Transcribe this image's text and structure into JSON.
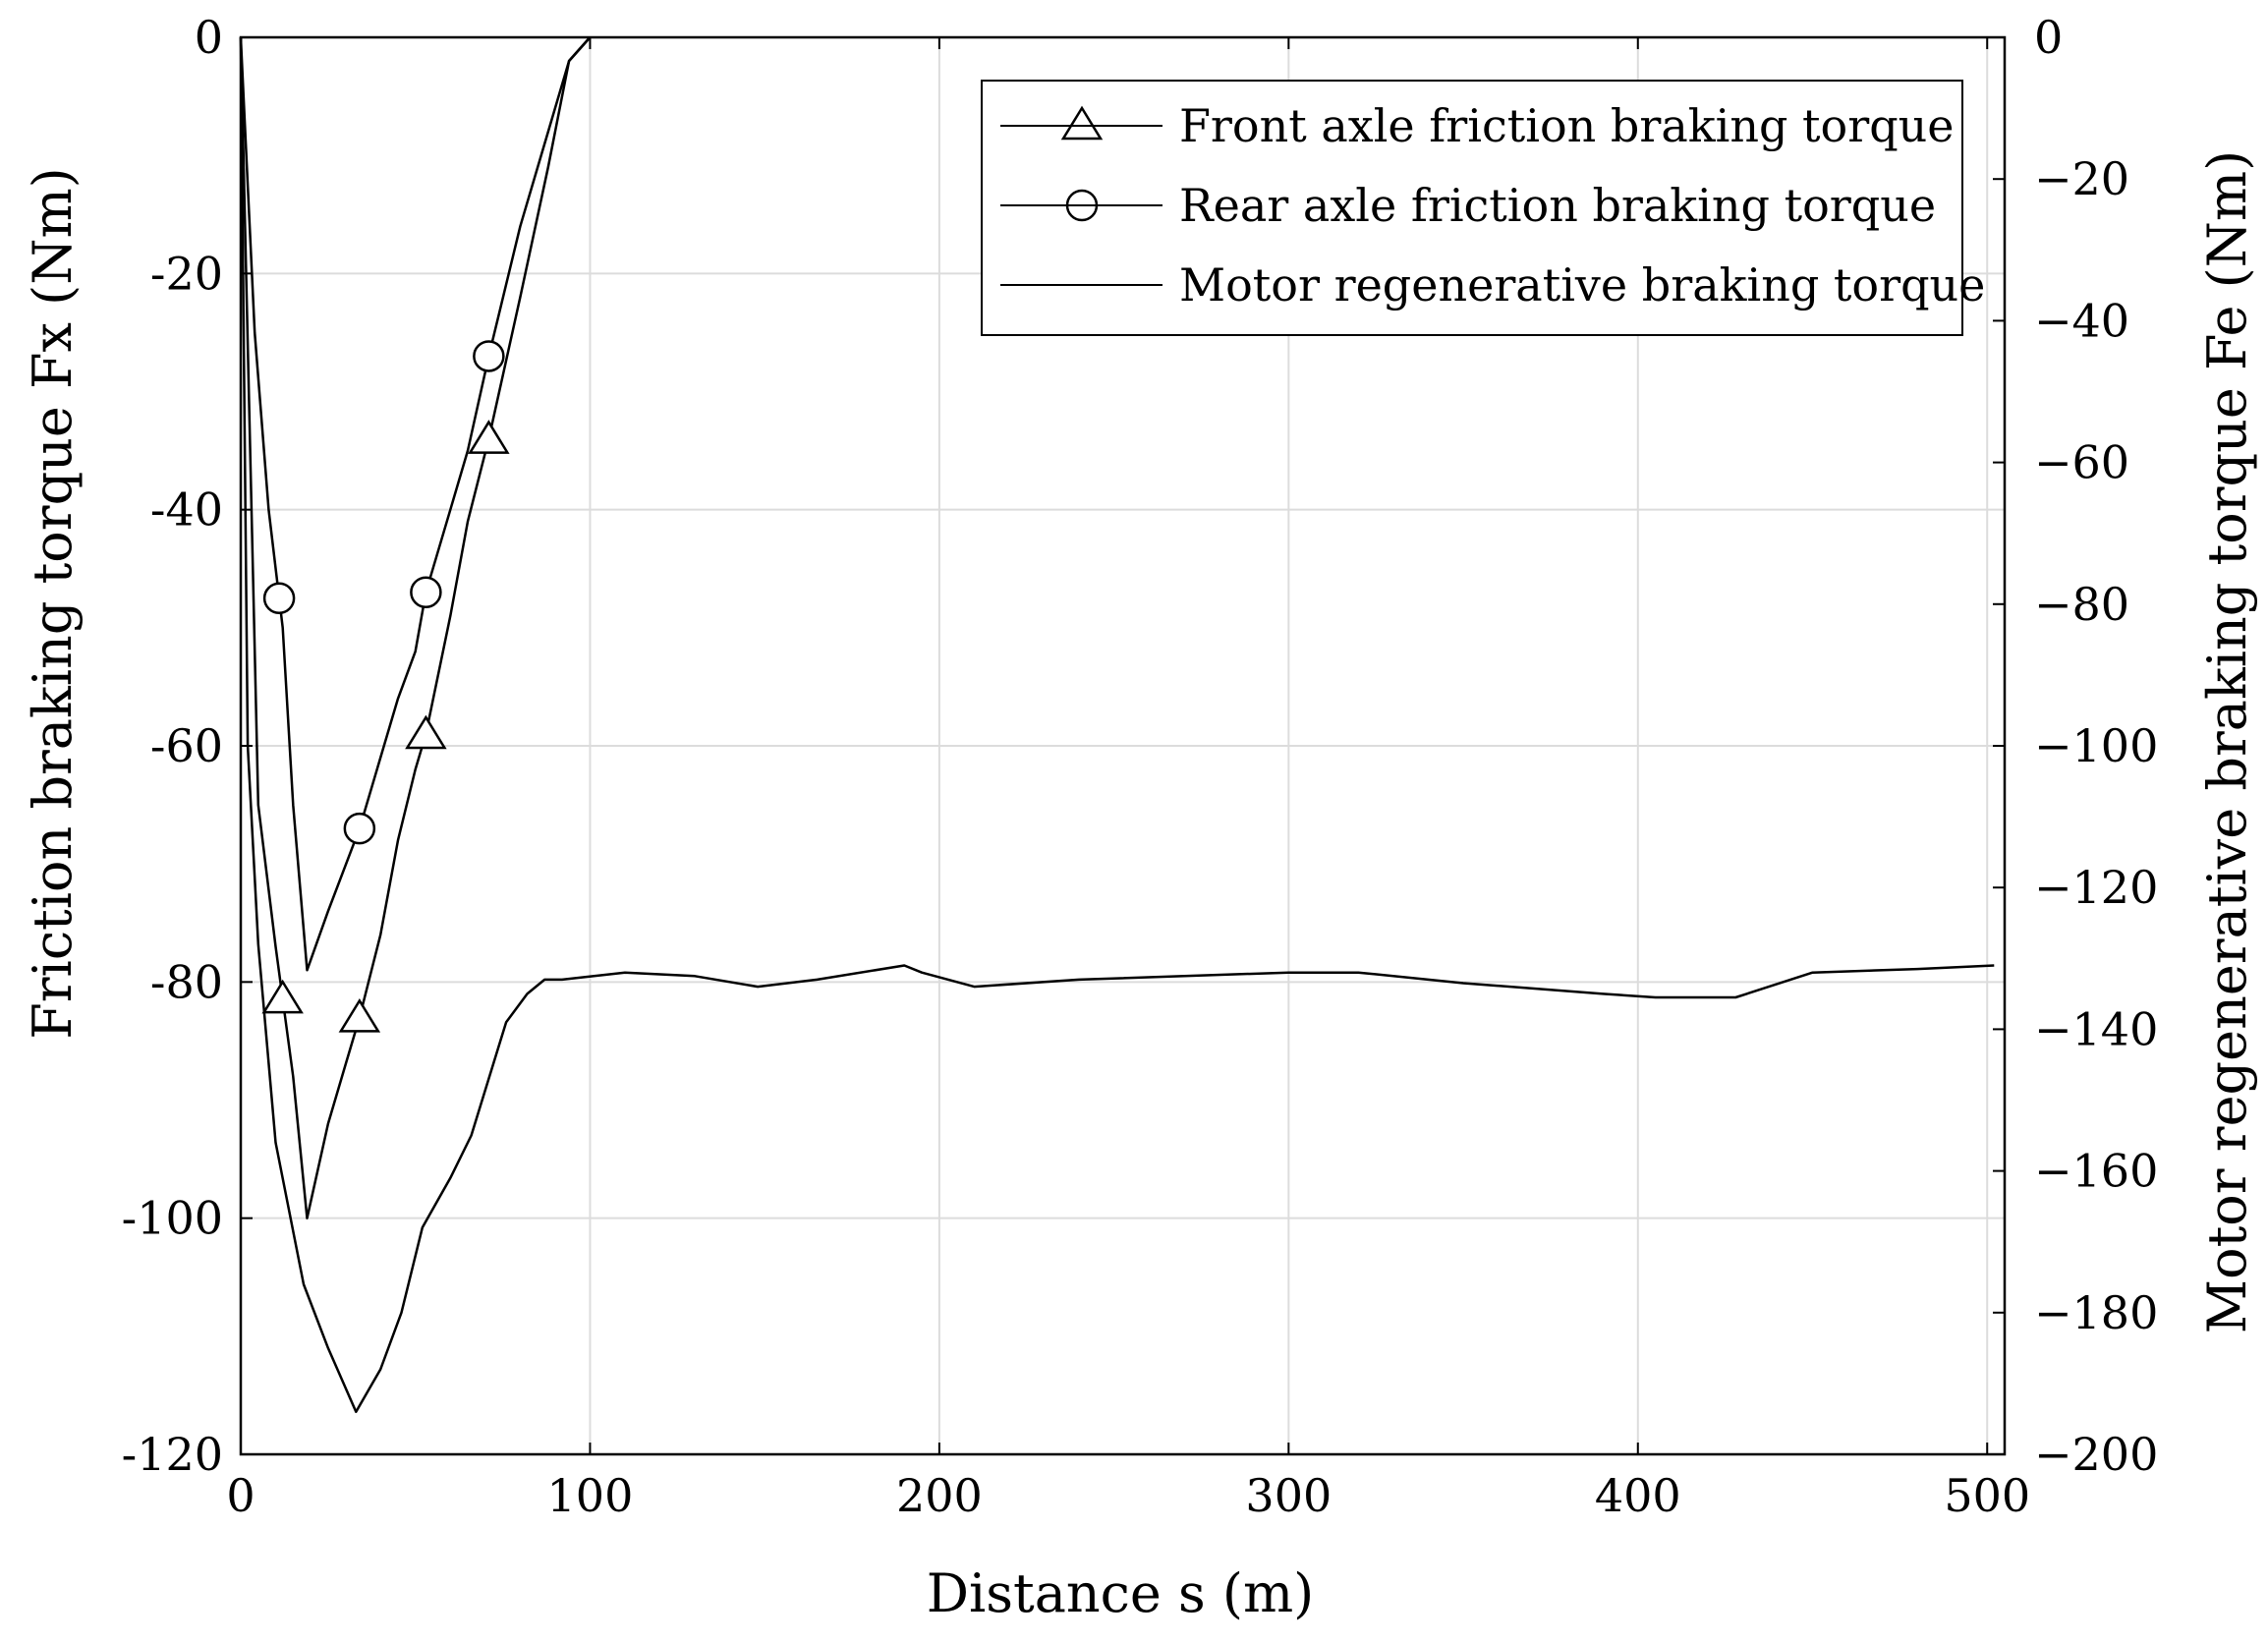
{
  "chart_data": {
    "type": "line",
    "xlabel": "Distance s (m)",
    "ylabel_left": "Friction braking torque Fx (Nm)",
    "ylabel_right": "Motor regenerative braking torque Fe (Nm)",
    "xlim": [
      0,
      505
    ],
    "ylim_left": [
      -120,
      0
    ],
    "ylim_right": [
      -200,
      0
    ],
    "x_ticks": [
      0,
      100,
      200,
      300,
      400,
      500
    ],
    "y_left_ticks": [
      0,
      -20,
      -40,
      -60,
      -80,
      -100,
      -120
    ],
    "y_right_ticks": [
      0,
      -20,
      -40,
      -60,
      -80,
      -100,
      -120,
      -140,
      -160,
      -180,
      -200
    ],
    "x_tick_labels": [
      "0",
      "100",
      "200",
      "300",
      "400",
      "500"
    ],
    "y_left_tick_labels": [
      "0",
      "-20",
      "-40",
      "-60",
      "-80",
      "-100",
      "-120"
    ],
    "y_right_tick_labels": [
      "0",
      "−20",
      "−40",
      "−60",
      "−80",
      "−100",
      "−120",
      "−140",
      "−160",
      "−180",
      "−200"
    ],
    "grid": true,
    "legend_position": "top-right",
    "series": [
      {
        "name": "Front axle friction braking torque",
        "axis": "left",
        "marker": "triangle",
        "color": "#000000",
        "x": [
          0,
          5,
          10,
          15,
          19,
          25,
          30,
          34,
          40,
          45,
          50,
          53,
          60,
          65,
          71,
          80,
          88,
          94,
          100
        ],
        "y": [
          0,
          -65,
          -77,
          -88,
          -100,
          -92,
          -87,
          -83,
          -76,
          -68,
          -62,
          -59,
          -49,
          -41,
          -34,
          -22,
          -11,
          -2,
          0
        ],
        "markers_x": [
          12,
          34,
          53,
          71
        ]
      },
      {
        "name": "Rear axle friction braking torque",
        "axis": "left",
        "marker": "circle",
        "color": "#000000",
        "x": [
          0,
          4,
          8,
          12,
          15,
          19,
          25,
          34,
          40,
          45,
          50,
          53,
          60,
          65,
          71,
          80,
          88,
          94,
          100
        ],
        "y": [
          0,
          -25,
          -40,
          -50,
          -65,
          -79,
          -74,
          -67,
          -61,
          -56,
          -52,
          -47,
          -40,
          -35,
          -27,
          -16,
          -8,
          -2,
          0
        ],
        "markers_x": [
          11,
          34,
          53,
          71
        ]
      },
      {
        "name": "Motor regenerative braking torque",
        "axis": "right",
        "marker": "none",
        "color": "#000000",
        "x": [
          0,
          2,
          5,
          10,
          18,
          25,
          33,
          40,
          46,
          52,
          60,
          66,
          76,
          82,
          87,
          92,
          110,
          130,
          148,
          165,
          190,
          195,
          210,
          240,
          300,
          320,
          350,
          390,
          405,
          428,
          450,
          480,
          502
        ],
        "y": [
          0,
          -100,
          -128,
          -156,
          -176,
          -185,
          -194,
          -188,
          -180,
          -168,
          -161,
          -155,
          -139,
          -135,
          -133,
          -133,
          -132,
          -132.5,
          -134,
          -133,
          -131,
          -132,
          -134,
          -133,
          -132,
          -132,
          -133.5,
          -135,
          -135.5,
          -135.5,
          -132,
          -131.5,
          -131
        ]
      }
    ]
  }
}
